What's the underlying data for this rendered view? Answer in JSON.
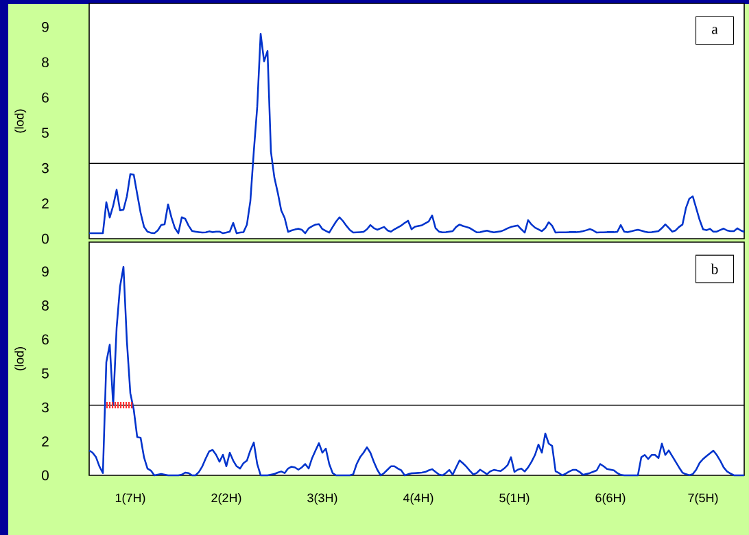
{
  "chart_data": [
    {
      "type": "line",
      "ylabel": "(lod)",
      "annotations": [
        "a"
      ],
      "categories": [
        null,
        null,
        null,
        null,
        null,
        null,
        null,
        null,
        null,
        null,
        null,
        null,
        null,
        null,
        null,
        null,
        null,
        null,
        null,
        null,
        null,
        null,
        null,
        null,
        null,
        null,
        null,
        null,
        null,
        null,
        null,
        null,
        null,
        null,
        null,
        null,
        null,
        null,
        null,
        null,
        null,
        null,
        null,
        null,
        null,
        null,
        null,
        null,
        null,
        null,
        null,
        null,
        null,
        null,
        null,
        null,
        null,
        null,
        null,
        null,
        null,
        null,
        null,
        null,
        null,
        null,
        null,
        null,
        null,
        null,
        null,
        null,
        null,
        null,
        null,
        null,
        null,
        null,
        null,
        null,
        null,
        null,
        null,
        null,
        null,
        null,
        null,
        null,
        null,
        null,
        null,
        null,
        null,
        null,
        null,
        null,
        null,
        null,
        null,
        null,
        null,
        null,
        null,
        null,
        null,
        null,
        null,
        null,
        null,
        null,
        null,
        null,
        null,
        null,
        null,
        null,
        null,
        null,
        null,
        null,
        null,
        null,
        null,
        null,
        null,
        null,
        null,
        null,
        null,
        null,
        null,
        null,
        null,
        null,
        null,
        null,
        null,
        null,
        null,
        null,
        null,
        null,
        null,
        null,
        null,
        null,
        null,
        null,
        null,
        null,
        null,
        null,
        null,
        null,
        null,
        null,
        null,
        null,
        null,
        null,
        null,
        null,
        null,
        null,
        null,
        null,
        null,
        null,
        null,
        null,
        null,
        null,
        null,
        null,
        null,
        null,
        null,
        null,
        null,
        null,
        null,
        null,
        null,
        null,
        null,
        null,
        null,
        null,
        null,
        null,
        null,
        null
      ],
      "series": [
        {
          "color": "#0033cc",
          "values": [
            0.23,
            0.23,
            0.23,
            0.23,
            0.23,
            1.55,
            0.9,
            1.4,
            2.08,
            1.2,
            1.23,
            1.8,
            2.75,
            2.72,
            1.9,
            1.1,
            0.5,
            0.3,
            0.25,
            0.23,
            0.35,
            0.58,
            0.61,
            1.46,
            0.9,
            0.45,
            0.23,
            0.91,
            0.85,
            0.55,
            0.33,
            0.3,
            0.28,
            0.26,
            0.27,
            0.31,
            0.28,
            0.3,
            0.3,
            0.23,
            0.26,
            0.3,
            0.67,
            0.23,
            0.26,
            0.28,
            0.6,
            1.6,
            3.7,
            5.6,
            8.71,
            7.54,
            7.98,
            3.7,
            2.6,
            1.95,
            1.2,
            0.88,
            0.29,
            0.35,
            0.39,
            0.42,
            0.38,
            0.23,
            0.44,
            0.53,
            0.6,
            0.62,
            0.41,
            0.33,
            0.26,
            0.5,
            0.73,
            0.91,
            0.75,
            0.55,
            0.37,
            0.26,
            0.27,
            0.28,
            0.29,
            0.4,
            0.58,
            0.45,
            0.38,
            0.44,
            0.5,
            0.35,
            0.3,
            0.4,
            0.48,
            0.56,
            0.67,
            0.76,
            0.4,
            0.51,
            0.54,
            0.57,
            0.65,
            0.73,
            0.99,
            0.45,
            0.3,
            0.27,
            0.28,
            0.3,
            0.32,
            0.5,
            0.6,
            0.54,
            0.5,
            0.45,
            0.36,
            0.27,
            0.28,
            0.31,
            0.34,
            0.3,
            0.27,
            0.29,
            0.31,
            0.37,
            0.44,
            0.5,
            0.53,
            0.56,
            0.4,
            0.26,
            0.79,
            0.6,
            0.47,
            0.4,
            0.32,
            0.45,
            0.7,
            0.55,
            0.26,
            0.27,
            0.27,
            0.27,
            0.28,
            0.28,
            0.28,
            0.29,
            0.32,
            0.36,
            0.41,
            0.35,
            0.26,
            0.27,
            0.27,
            0.28,
            0.28,
            0.28,
            0.29,
            0.58,
            0.3,
            0.28,
            0.31,
            0.35,
            0.38,
            0.34,
            0.3,
            0.27,
            0.28,
            0.3,
            0.32,
            0.45,
            0.61,
            0.46,
            0.3,
            0.35,
            0.5,
            0.6,
            1.3,
            1.7,
            1.8,
            1.3,
            0.8,
            0.4,
            0.36,
            0.42,
            0.3,
            0.3,
            0.37,
            0.43,
            0.35,
            0.32,
            0.32,
            0.44,
            0.35,
            0.29
          ]
        }
      ],
      "ylim": [
        0,
        10
      ],
      "yticks": [
        0,
        {
          "value": 1.5,
          "label": "2"
        },
        3,
        {
          "value": 4.5,
          "label": "5"
        },
        6,
        {
          "value": 7.5,
          "label": "8"
        },
        9
      ],
      "ref_lines": [
        {
          "axis": "y",
          "value": 3.2,
          "color": "#000000"
        }
      ]
    },
    {
      "type": "line",
      "ylabel": "(lod)",
      "annotations": [
        "b"
      ],
      "categories": [
        null,
        null,
        null,
        null,
        null,
        null,
        null,
        null,
        null,
        null,
        null,
        null,
        "1(7H)",
        null,
        null,
        null,
        null,
        null,
        null,
        null,
        null,
        null,
        null,
        null,
        null,
        null,
        null,
        null,
        null,
        null,
        null,
        null,
        null,
        null,
        null,
        null,
        null,
        null,
        null,
        null,
        "2(2H)",
        null,
        null,
        null,
        null,
        null,
        null,
        null,
        null,
        null,
        null,
        null,
        null,
        null,
        null,
        null,
        null,
        null,
        null,
        null,
        null,
        null,
        null,
        null,
        null,
        null,
        null,
        null,
        "3(3H)",
        null,
        null,
        null,
        null,
        null,
        null,
        null,
        null,
        null,
        null,
        null,
        null,
        null,
        null,
        null,
        null,
        null,
        null,
        null,
        null,
        null,
        null,
        null,
        null,
        null,
        null,
        null,
        "4(4H)",
        null,
        null,
        null,
        null,
        null,
        null,
        null,
        null,
        null,
        null,
        null,
        null,
        null,
        null,
        null,
        null,
        null,
        null,
        null,
        null,
        null,
        null,
        null,
        null,
        null,
        null,
        null,
        "5(1H)",
        null,
        null,
        null,
        null,
        null,
        null,
        null,
        null,
        null,
        null,
        null,
        null,
        null,
        null,
        null,
        null,
        null,
        null,
        null,
        null,
        null,
        null,
        null,
        null,
        null,
        null,
        null,
        "6(6H)",
        null,
        null,
        null,
        null,
        null,
        null,
        null,
        null,
        null,
        null,
        null,
        null,
        null,
        null,
        null,
        null,
        null,
        null,
        null,
        null,
        null,
        null,
        null,
        null,
        null,
        null,
        "7(5H)",
        null,
        null,
        null,
        null,
        null,
        null,
        null,
        null,
        null,
        null,
        null,
        null
      ],
      "series": [
        {
          "color": "#0033cc",
          "values": [
            1.1,
            1.0,
            0.8,
            0.39,
            0.1,
            5.0,
            5.77,
            3.11,
            6.5,
            8.34,
            9.21,
            5.92,
            3.63,
            2.9,
            1.69,
            1.66,
            0.79,
            0.3,
            0.21,
            0,
            0.03,
            0.06,
            0.03,
            0,
            0,
            0,
            0,
            0.03,
            0.12,
            0.1,
            0,
            0,
            0.15,
            0.4,
            0.75,
            1.06,
            1.12,
            0.91,
            0.6,
            0.91,
            0.4,
            1.0,
            0.65,
            0.4,
            0.3,
            0.54,
            0.65,
            1.1,
            1.45,
            0.5,
            0,
            0,
            0,
            0.03,
            0.06,
            0.12,
            0.17,
            0.1,
            0.3,
            0.38,
            0.35,
            0.25,
            0.35,
            0.5,
            0.3,
            0.76,
            1.1,
            1.42,
            1.0,
            1.18,
            0.5,
            0.1,
            0,
            0,
            0,
            0,
            0,
            0.05,
            0.5,
            0.8,
            1.0,
            1.24,
            1.0,
            0.6,
            0.25,
            0,
            0.1,
            0.25,
            0.4,
            0.4,
            0.3,
            0.22,
            0,
            0.05,
            0.09,
            0.1,
            0.11,
            0.12,
            0.15,
            0.22,
            0.27,
            0.15,
            0.04,
            0,
            0.1,
            0.24,
            0.03,
            0.35,
            0.66,
            0.53,
            0.38,
            0.2,
            0.04,
            0.1,
            0.25,
            0.15,
            0.05,
            0.18,
            0.24,
            0.21,
            0.19,
            0.3,
            0.45,
            0.8,
            0.15,
            0.25,
            0.3,
            0.17,
            0.35,
            0.6,
            0.9,
            1.36,
            1.0,
            1.85,
            1.4,
            1.3,
            0.18,
            0.1,
            0,
            0.08,
            0.17,
            0.24,
            0.24,
            0.15,
            0.02,
            0.06,
            0.1,
            0.16,
            0.22,
            0.5,
            0.4,
            0.28,
            0.25,
            0.22,
            0.1,
            0.02,
            0,
            0,
            0,
            0,
            0,
            0.8,
            0.9,
            0.72,
            0.9,
            0.9,
            0.76,
            1.4,
            0.9,
            1.1,
            0.85,
            0.6,
            0.35,
            0.12,
            0.05,
            0.01,
            0.05,
            0.25,
            0.55,
            0.72,
            0.85,
            0.97,
            1.09,
            0.9,
            0.65,
            0.35,
            0.17,
            0.08,
            0,
            0,
            0,
            0
          ]
        },
        {
          "type": "line",
          "color": "#ff3333",
          "line_style": "dashed",
          "values": [
            null,
            null,
            null,
            null,
            null,
            3.1,
            3.1,
            3.1,
            3.1,
            3.1,
            3.1,
            3.1,
            3.1,
            3.1,
            null,
            null,
            null,
            null,
            null,
            null,
            null,
            null,
            null,
            null,
            null,
            null,
            null,
            null,
            null,
            null,
            null,
            null,
            null,
            null,
            null,
            null,
            null,
            null,
            null,
            null,
            null,
            null,
            null,
            null,
            null,
            null,
            null,
            null,
            null,
            null,
            null,
            null,
            null,
            null,
            null,
            null,
            null,
            null,
            null,
            null,
            null,
            null,
            null,
            null,
            null,
            null,
            null,
            null,
            null,
            null,
            null,
            null,
            null,
            null,
            null,
            null,
            null,
            null,
            null,
            null,
            null,
            null,
            null,
            null,
            null,
            null,
            null,
            null,
            null,
            null,
            null,
            null,
            null,
            null,
            null,
            null,
            null,
            null,
            null,
            null,
            null,
            null,
            null,
            null,
            null,
            null,
            null,
            null,
            null,
            null,
            null,
            null,
            null,
            null,
            null,
            null,
            null,
            null,
            null,
            null,
            null,
            null,
            null,
            null,
            null,
            null,
            null,
            null,
            null,
            null,
            null,
            null,
            null,
            null,
            null,
            null,
            null,
            null,
            null,
            null,
            null,
            null,
            null,
            null,
            null,
            null,
            null,
            null,
            null,
            null,
            null,
            null,
            null,
            null,
            null,
            null,
            null,
            null,
            null,
            null,
            null,
            null,
            null,
            null,
            null,
            null,
            null,
            null,
            null,
            null,
            null,
            null,
            null,
            null,
            null,
            null,
            null,
            null,
            null,
            null,
            null,
            null,
            null,
            null,
            null,
            null,
            null,
            null,
            null,
            null,
            null,
            null
          ]
        }
      ],
      "ylim": [
        0,
        10.3
      ],
      "yticks": [
        0,
        {
          "value": 1.5,
          "label": "2"
        },
        3,
        {
          "value": 4.5,
          "label": "5"
        },
        6,
        {
          "value": 7.5,
          "label": "8"
        },
        9
      ],
      "ref_lines": [
        {
          "axis": "y",
          "value": 3.1,
          "color": "#000000"
        }
      ]
    }
  ]
}
